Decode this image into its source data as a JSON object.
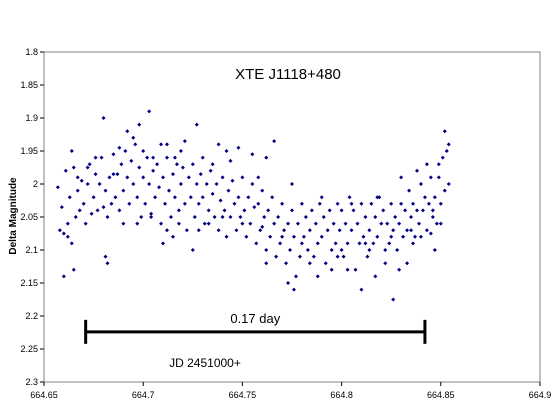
{
  "chart_data": {
    "type": "scatter",
    "title": "XTE J1118+480",
    "xlabel": "",
    "ylabel": "Delta Magnitude",
    "xlim": [
      664.65,
      664.9
    ],
    "ylim": [
      1.8,
      2.3
    ],
    "y_inverted": true,
    "x_ticks": [
      "664.65",
      "664.7",
      "664.75",
      "664.8",
      "664.85",
      "664.9"
    ],
    "y_ticks": [
      "1.8",
      "1.85",
      "1.9",
      "1.95",
      "2",
      "2.05",
      "2.1",
      "2.15",
      "2.2",
      "2.25",
      "2.3"
    ],
    "grid": false,
    "marker_color": "#000080",
    "scale_bar": {
      "label": "0.17 day",
      "x_start": 664.671,
      "x_end": 664.842,
      "y": 2.224
    },
    "x_offset_label": "JD 2451000+",
    "series": [
      {
        "name": "",
        "points": [
          [
            664.657,
            2.005
          ],
          [
            664.658,
            2.07
          ],
          [
            664.659,
            2.035
          ],
          [
            664.66,
            2.075
          ],
          [
            664.661,
            1.98
          ],
          [
            664.662,
            2.06
          ],
          [
            664.663,
            2.02
          ],
          [
            664.664,
            2.09
          ],
          [
            664.665,
            1.975
          ],
          [
            664.666,
            2.05
          ],
          [
            664.667,
            2.01
          ],
          [
            664.668,
            2.04
          ],
          [
            664.669,
            1.995
          ],
          [
            664.67,
            2.03
          ],
          [
            664.671,
            2.06
          ],
          [
            664.672,
            2.0
          ],
          [
            664.673,
            1.97
          ],
          [
            664.674,
            2.045
          ],
          [
            664.675,
            2.02
          ],
          [
            664.676,
            1.985
          ],
          [
            664.677,
            2.04
          ],
          [
            664.678,
            2.0
          ],
          [
            664.679,
            1.96
          ],
          [
            664.68,
            2.035
          ],
          [
            664.681,
            2.01
          ],
          [
            664.682,
            2.05
          ],
          [
            664.683,
            1.99
          ],
          [
            664.684,
            2.03
          ],
          [
            664.685,
            1.955
          ],
          [
            664.686,
            2.02
          ],
          [
            664.687,
            1.985
          ],
          [
            664.688,
            2.04
          ],
          [
            664.689,
            1.97
          ],
          [
            664.69,
            2.01
          ],
          [
            664.691,
            1.95
          ],
          [
            664.692,
            1.99
          ],
          [
            664.693,
            2.03
          ],
          [
            664.694,
            1.965
          ],
          [
            664.695,
            2.0
          ],
          [
            664.696,
            1.94
          ],
          [
            664.697,
            2.02
          ],
          [
            664.698,
            1.975
          ],
          [
            664.699,
            2.05
          ],
          [
            664.7,
            1.99
          ],
          [
            664.701,
            2.03
          ],
          [
            664.702,
            1.96
          ],
          [
            664.703,
            2.0
          ],
          [
            664.704,
            2.045
          ],
          [
            664.705,
            1.98
          ],
          [
            664.706,
            2.02
          ],
          [
            664.707,
            1.97
          ],
          [
            664.708,
            2.005
          ],
          [
            664.709,
            2.06
          ],
          [
            664.71,
            1.99
          ],
          [
            664.711,
            2.03
          ],
          [
            664.712,
            1.96
          ],
          [
            664.713,
            2.01
          ],
          [
            664.714,
            2.05
          ],
          [
            664.715,
            1.985
          ],
          [
            664.716,
            2.02
          ],
          [
            664.717,
            1.97
          ],
          [
            664.718,
            2.04
          ],
          [
            664.719,
            2.0
          ],
          [
            664.72,
            1.975
          ],
          [
            664.721,
            2.03
          ],
          [
            664.722,
            2.07
          ],
          [
            664.723,
            1.99
          ],
          [
            664.724,
            2.02
          ],
          [
            664.725,
            1.97
          ],
          [
            664.726,
            2.05
          ],
          [
            664.727,
            2.0
          ],
          [
            664.728,
            2.03
          ],
          [
            664.729,
            1.985
          ],
          [
            664.73,
            2.02
          ],
          [
            664.731,
            2.06
          ],
          [
            664.732,
            2.0
          ],
          [
            664.733,
            2.04
          ],
          [
            664.734,
            1.98
          ],
          [
            664.735,
            2.015
          ],
          [
            664.736,
            2.05
          ],
          [
            664.737,
            2.0
          ],
          [
            664.738,
            2.07
          ],
          [
            664.739,
            2.025
          ],
          [
            664.74,
            1.99
          ],
          [
            664.741,
            2.04
          ],
          [
            664.742,
            2.08
          ],
          [
            664.743,
            2.01
          ],
          [
            664.744,
            2.05
          ],
          [
            664.745,
            1.995
          ],
          [
            664.746,
            2.03
          ],
          [
            664.747,
            2.07
          ],
          [
            664.748,
            2.02
          ],
          [
            664.749,
            2.05
          ],
          [
            664.75,
            1.99
          ],
          [
            664.751,
            2.04
          ],
          [
            664.752,
            2.08
          ],
          [
            664.753,
            2.02
          ],
          [
            664.754,
            2.06
          ],
          [
            664.755,
            2.0
          ],
          [
            664.756,
            2.035
          ],
          [
            664.757,
            2.09
          ],
          [
            664.758,
            2.03
          ],
          [
            664.759,
            2.07
          ],
          [
            664.76,
            2.01
          ],
          [
            664.761,
            2.05
          ],
          [
            664.762,
            2.1
          ],
          [
            664.763,
            2.04
          ],
          [
            664.764,
            2.08
          ],
          [
            664.765,
            2.02
          ],
          [
            664.766,
            2.06
          ],
          [
            664.767,
            2.11
          ],
          [
            664.768,
            2.05
          ],
          [
            664.769,
            2.09
          ],
          [
            664.77,
            2.03
          ],
          [
            664.771,
            2.07
          ],
          [
            664.772,
            2.12
          ],
          [
            664.773,
            2.06
          ],
          [
            664.774,
            2.1
          ],
          [
            664.775,
            2.04
          ],
          [
            664.776,
            2.08
          ],
          [
            664.777,
            2.14
          ],
          [
            664.778,
            2.06
          ],
          [
            664.779,
            2.11
          ],
          [
            664.78,
            2.03
          ],
          [
            664.781,
            2.08
          ],
          [
            664.782,
            2.05
          ],
          [
            664.783,
            2.1
          ],
          [
            664.784,
            2.07
          ],
          [
            664.785,
            2.04
          ],
          [
            664.786,
            2.11
          ],
          [
            664.787,
            2.06
          ],
          [
            664.788,
            2.09
          ],
          [
            664.789,
            2.03
          ],
          [
            664.79,
            2.08
          ],
          [
            664.791,
            2.05
          ],
          [
            664.792,
            2.12
          ],
          [
            664.793,
            2.07
          ],
          [
            664.794,
            2.04
          ],
          [
            664.795,
            2.1
          ],
          [
            664.796,
            2.06
          ],
          [
            664.797,
            2.09
          ],
          [
            664.798,
            2.03
          ],
          [
            664.799,
            2.07
          ],
          [
            664.8,
            2.04
          ],
          [
            664.801,
            2.11
          ],
          [
            664.802,
            2.06
          ],
          [
            664.803,
            2.09
          ],
          [
            664.804,
            2.02
          ],
          [
            664.805,
            2.07
          ],
          [
            664.806,
            2.04
          ],
          [
            664.807,
            2.13
          ],
          [
            664.808,
            2.06
          ],
          [
            664.809,
            2.09
          ],
          [
            664.81,
            2.03
          ],
          [
            664.811,
            2.08
          ],
          [
            664.812,
            2.05
          ],
          [
            664.813,
            2.11
          ],
          [
            664.814,
            2.07
          ],
          [
            664.815,
            2.03
          ],
          [
            664.816,
            2.09
          ],
          [
            664.817,
            2.05
          ],
          [
            664.818,
            2.08
          ],
          [
            664.819,
            2.02
          ],
          [
            664.82,
            2.06
          ],
          [
            664.821,
            2.04
          ],
          [
            664.822,
            2.1
          ],
          [
            664.823,
            2.06
          ],
          [
            664.824,
            2.09
          ],
          [
            664.825,
            2.03
          ],
          [
            664.826,
            2.07
          ],
          [
            664.827,
            2.05
          ],
          [
            664.828,
            2.1
          ],
          [
            664.829,
            2.06
          ],
          [
            664.83,
            2.03
          ],
          [
            664.831,
            2.08
          ],
          [
            664.832,
            2.04
          ],
          [
            664.833,
            2.07
          ],
          [
            664.834,
            2.01
          ],
          [
            664.835,
            2.05
          ],
          [
            664.836,
            2.03
          ],
          [
            664.837,
            2.08
          ],
          [
            664.838,
            2.04
          ],
          [
            664.839,
            2.06
          ],
          [
            664.84,
            2.0
          ],
          [
            664.841,
            2.04
          ],
          [
            664.842,
            2.02
          ],
          [
            664.843,
            2.07
          ],
          [
            664.844,
            2.03
          ],
          [
            664.845,
            1.99
          ],
          [
            664.846,
            2.04
          ],
          [
            664.847,
            2.02
          ],
          [
            664.848,
            2.06
          ],
          [
            664.849,
            1.99
          ],
          [
            664.85,
            2.03
          ],
          [
            664.851,
            1.96
          ],
          [
            664.852,
            2.01
          ],
          [
            664.853,
            1.95
          ],
          [
            664.854,
            2.0
          ],
          [
            664.68,
            1.9
          ],
          [
            664.692,
            1.92
          ],
          [
            664.698,
            1.91
          ],
          [
            664.703,
            1.89
          ],
          [
            664.712,
            1.94
          ],
          [
            664.721,
            1.935
          ],
          [
            664.727,
            1.91
          ],
          [
            664.738,
            1.94
          ],
          [
            664.742,
            1.95
          ],
          [
            664.748,
            1.945
          ],
          [
            664.755,
            1.955
          ],
          [
            664.762,
            1.96
          ],
          [
            664.766,
            1.935
          ],
          [
            664.852,
            1.92
          ],
          [
            664.66,
            2.14
          ],
          [
            664.665,
            2.13
          ],
          [
            664.681,
            2.11
          ],
          [
            664.682,
            2.12
          ],
          [
            664.762,
            2.12
          ],
          [
            664.773,
            2.15
          ],
          [
            664.776,
            2.16
          ],
          [
            664.788,
            2.14
          ],
          [
            664.795,
            2.13
          ],
          [
            664.81,
            2.16
          ],
          [
            664.817,
            2.14
          ],
          [
            664.826,
            2.175
          ],
          [
            664.829,
            2.13
          ],
          [
            664.833,
            2.12
          ],
          [
            664.847,
            2.1
          ],
          [
            664.712,
            2.07
          ],
          [
            664.71,
            2.09
          ],
          [
            664.715,
            2.08
          ],
          [
            664.725,
            2.1
          ],
          [
            664.733,
            2.06
          ],
          [
            664.784,
            2.12
          ],
          [
            664.798,
            2.11
          ],
          [
            664.803,
            2.13
          ],
          [
            664.814,
            2.1
          ],
          [
            664.822,
            2.12
          ],
          [
            664.836,
            2.09
          ],
          [
            664.84,
            2.08
          ],
          [
            664.845,
            2.075
          ],
          [
            664.85,
            2.06
          ],
          [
            664.662,
            2.08
          ],
          [
            664.688,
            1.945
          ],
          [
            664.695,
            1.93
          ],
          [
            664.7,
            1.95
          ],
          [
            664.705,
            1.96
          ],
          [
            664.709,
            1.94
          ],
          [
            664.716,
            1.96
          ],
          [
            664.719,
            1.95
          ],
          [
            664.73,
            1.96
          ],
          [
            664.735,
            1.97
          ],
          [
            664.744,
            1.965
          ],
          [
            664.758,
            1.99
          ],
          [
            664.775,
            2.0
          ],
          [
            664.79,
            2.02
          ],
          [
            664.805,
            2.03
          ],
          [
            664.818,
            2.02
          ],
          [
            664.83,
            1.99
          ],
          [
            664.838,
            1.98
          ],
          [
            664.843,
            1.97
          ],
          [
            664.849,
            1.97
          ],
          [
            664.854,
            1.94
          ],
          [
            664.664,
            1.95
          ],
          [
            664.667,
            1.99
          ],
          [
            664.672,
            1.975
          ],
          [
            664.676,
            1.96
          ],
          [
            664.685,
            1.985
          ],
          [
            664.69,
            2.06
          ],
          [
            664.697,
            2.06
          ],
          [
            664.704,
            2.05
          ],
          [
            664.718,
            2.06
          ],
          [
            664.728,
            2.07
          ],
          [
            664.74,
            2.05
          ],
          [
            664.75,
            2.06
          ],
          [
            664.76,
            2.065
          ],
          [
            664.77,
            2.08
          ],
          [
            664.78,
            2.09
          ],
          [
            664.8,
            2.1
          ],
          [
            664.812,
            2.09
          ],
          [
            664.825,
            2.08
          ],
          [
            664.835,
            2.07
          ],
          [
            664.846,
            2.05
          ]
        ]
      }
    ]
  }
}
